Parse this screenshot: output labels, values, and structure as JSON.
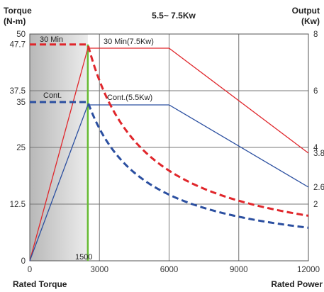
{
  "chart_data": {
    "type": "line",
    "title": "5.5~ 7.5Kw",
    "left_axis_title": [
      "Torque",
      "(N-m)"
    ],
    "right_axis_title": [
      "Output",
      "(Kw)"
    ],
    "xlabel_left": "Rated Torque",
    "xlabel_right": "Rated Power",
    "xlim": [
      0,
      12000
    ],
    "ylim_torque": [
      0,
      50
    ],
    "ylim_output": [
      0,
      8
    ],
    "x_ticks": [
      "0",
      "3000",
      "6000",
      "9000",
      "12000"
    ],
    "x_tick_values": [
      0,
      3000,
      6000,
      9000,
      12000
    ],
    "left_ticks": [
      "0",
      "12.5",
      "25",
      "35",
      "37.5",
      "47.7",
      "50"
    ],
    "left_tick_values": [
      0,
      12.5,
      25,
      35,
      37.5,
      47.7,
      50
    ],
    "right_ticks": [
      "2",
      "2.6",
      "3.8",
      "4",
      "6",
      "8"
    ],
    "right_tick_values": [
      2,
      2.6,
      3.8,
      4,
      6,
      8
    ],
    "shaded_region_x": [
      0,
      2500
    ],
    "base_speed_marker": {
      "label": "1500",
      "x": 2500,
      "color": "#66bb33"
    },
    "grid": true,
    "series": [
      {
        "name": "30 Min",
        "axis": "torque",
        "style": "dashed",
        "color": "#e0262b",
        "x": [
          0,
          2500,
          3000,
          4000,
          5000,
          6000,
          7000,
          8000,
          9000,
          10000,
          11000,
          12000
        ],
        "y": [
          47.7,
          47.7,
          39.8,
          29.8,
          23.9,
          19.9,
          17.0,
          14.9,
          13.3,
          11.9,
          10.8,
          9.9
        ]
      },
      {
        "name": "Cont.",
        "axis": "torque",
        "style": "dashed",
        "color": "#2b4fa0",
        "x": [
          0,
          2500,
          3000,
          4000,
          5000,
          6000,
          7000,
          8000,
          9000,
          10000,
          11000,
          12000
        ],
        "y": [
          35,
          35,
          29.2,
          21.9,
          17.5,
          14.6,
          12.5,
          10.9,
          9.7,
          8.8,
          8.0,
          7.3
        ]
      },
      {
        "name": "30 Min(7.5Kw)",
        "axis": "output",
        "style": "solid",
        "color": "#e0262b",
        "x": [
          0,
          2500,
          6000,
          12000
        ],
        "y": [
          0,
          7.5,
          7.5,
          3.8
        ]
      },
      {
        "name": "Cont.(5.5Kw)",
        "axis": "output",
        "style": "solid",
        "color": "#2b4fa0",
        "x": [
          0,
          2500,
          6000,
          12000
        ],
        "y": [
          0,
          5.5,
          5.5,
          2.6
        ]
      }
    ]
  }
}
